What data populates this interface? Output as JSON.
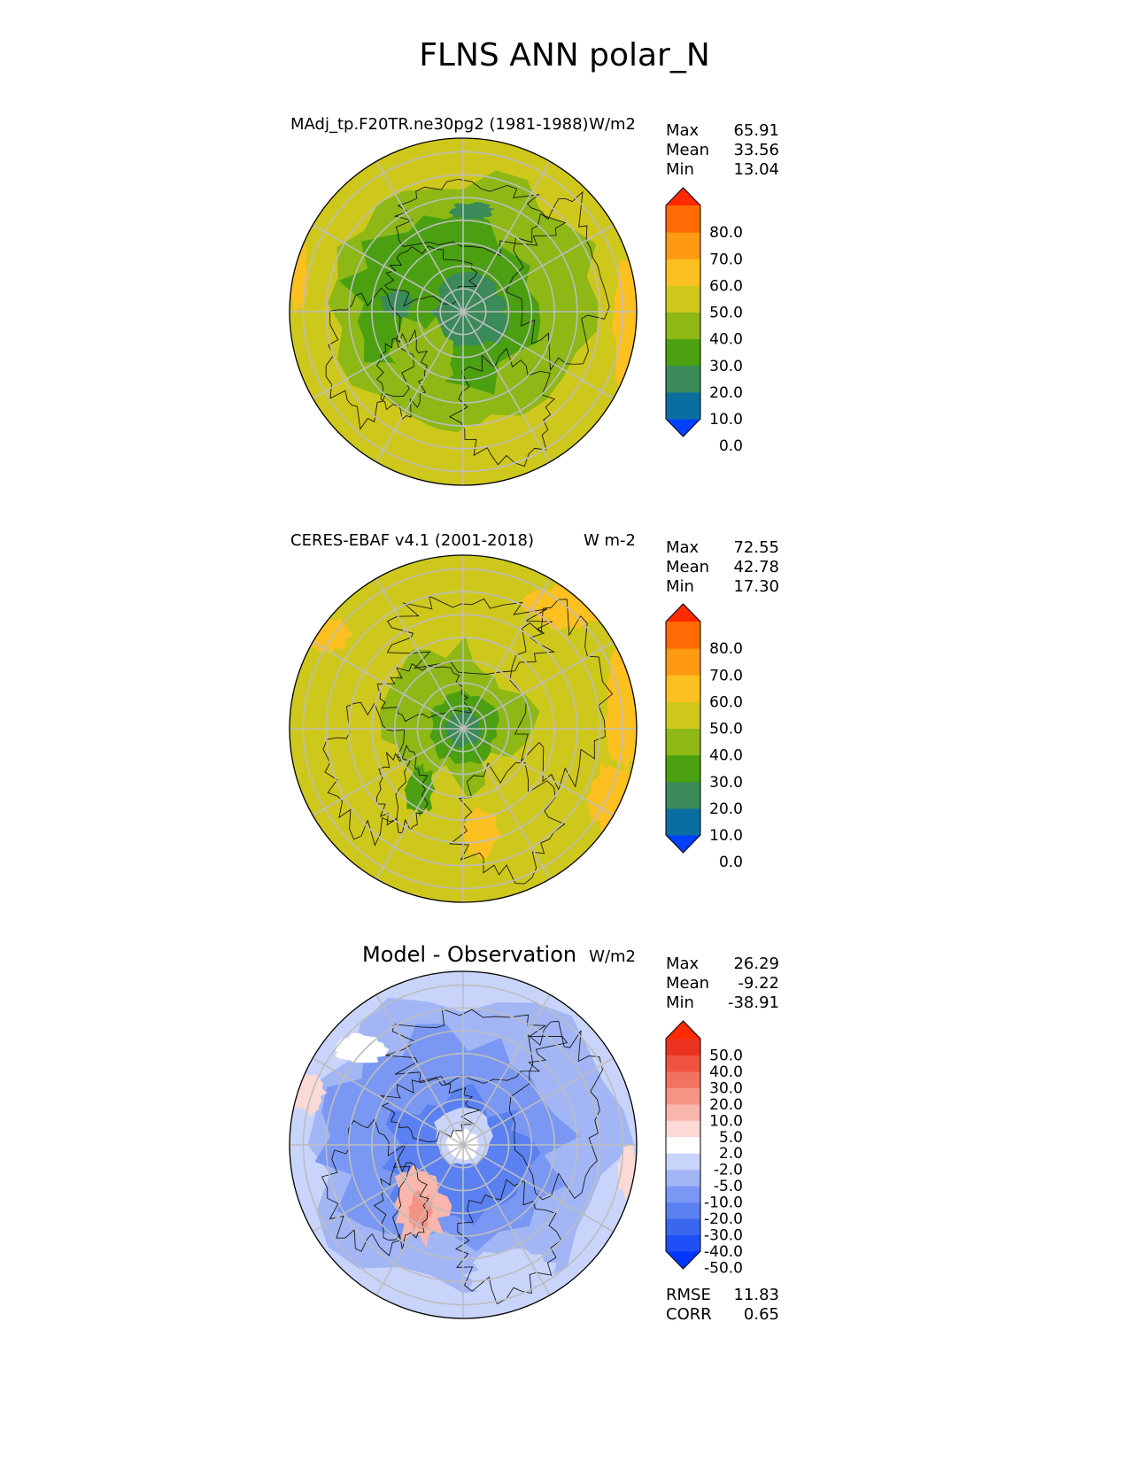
{
  "title": "FLNS ANN polar_N",
  "panels": [
    {
      "title": "MAdj_tp.F20TR.ne30pg2 (1981-1988)",
      "units": "W/m2",
      "stats": [
        {
          "label": "Max",
          "value": "65.91"
        },
        {
          "label": "Mean",
          "value": "33.56"
        },
        {
          "label": "Min",
          "value": "13.04"
        }
      ],
      "colorbar_ticks": [
        "80.0",
        "70.0",
        "60.0",
        "50.0",
        "40.0",
        "30.0",
        "20.0",
        "10.0",
        "0.0"
      ]
    },
    {
      "title": "CERES-EBAF v4.1 (2001-2018)",
      "units": "W m-2",
      "stats": [
        {
          "label": "Max",
          "value": "72.55"
        },
        {
          "label": "Mean",
          "value": "42.78"
        },
        {
          "label": "Min",
          "value": "17.30"
        }
      ],
      "colorbar_ticks": [
        "80.0",
        "70.0",
        "60.0",
        "50.0",
        "40.0",
        "30.0",
        "20.0",
        "10.0",
        "0.0"
      ]
    },
    {
      "title": "Model - Observation",
      "units": "W/m2",
      "stats": [
        {
          "label": "Max",
          "value": "26.29"
        },
        {
          "label": "Mean",
          "value": "-9.22"
        },
        {
          "label": "Min",
          "value": "-38.91"
        }
      ],
      "colorbar_ticks": [
        "50.0",
        "40.0",
        "30.0",
        "20.0",
        "10.0",
        "5.0",
        "2.0",
        "-2.0",
        "-5.0",
        "-10.0",
        "-20.0",
        "-30.0",
        "-40.0",
        "-50.0"
      ],
      "metrics": [
        {
          "label": "RMSE",
          "value": "11.83"
        },
        {
          "label": "CORR",
          "value": "0.65"
        }
      ]
    }
  ],
  "chart_data": [
    {
      "type": "heatmap",
      "title": "MAdj_tp.F20TR.ne30pg2 (1981-1988)",
      "units": "W/m2",
      "projection": "north polar stereographic",
      "max": 65.91,
      "mean": 33.56,
      "min": 13.04,
      "levels": [
        0,
        10,
        20,
        30,
        40,
        50,
        60,
        70,
        80
      ],
      "colors": [
        "#0040ff",
        "#0a6fa0",
        "#3a8a5a",
        "#4aa010",
        "#8db816",
        "#cfc81c",
        "#fcc021",
        "#ff9a12",
        "#ff6a05",
        "#ff2a00"
      ]
    },
    {
      "type": "heatmap",
      "title": "CERES-EBAF v4.1 (2001-2018)",
      "units": "W m-2",
      "projection": "north polar stereographic",
      "max": 72.55,
      "mean": 42.78,
      "min": 17.3,
      "levels": [
        0,
        10,
        20,
        30,
        40,
        50,
        60,
        70,
        80
      ],
      "colors": [
        "#0040ff",
        "#0a6fa0",
        "#3a8a5a",
        "#4aa010",
        "#8db816",
        "#cfc81c",
        "#fcc021",
        "#ff9a12",
        "#ff6a05",
        "#ff2a00"
      ]
    },
    {
      "type": "heatmap",
      "title": "Model - Observation",
      "units": "W/m2",
      "projection": "north polar stereographic",
      "max": 26.29,
      "mean": -9.22,
      "min": -38.91,
      "rmse": 11.83,
      "corr": 0.65,
      "levels": [
        -50,
        -40,
        -30,
        -20,
        -10,
        -5,
        -2,
        2,
        5,
        10,
        20,
        30,
        40,
        50
      ],
      "colors": [
        "#0037ff",
        "#1f4ff6",
        "#3a66f0",
        "#5a80f2",
        "#7a98f3",
        "#a2b6f6",
        "#c9d4fb",
        "#ffffff",
        "#fbd9d4",
        "#f8b6ac",
        "#f59484",
        "#f2735f",
        "#ef533f",
        "#ec3322",
        "#ff2a00"
      ]
    }
  ]
}
